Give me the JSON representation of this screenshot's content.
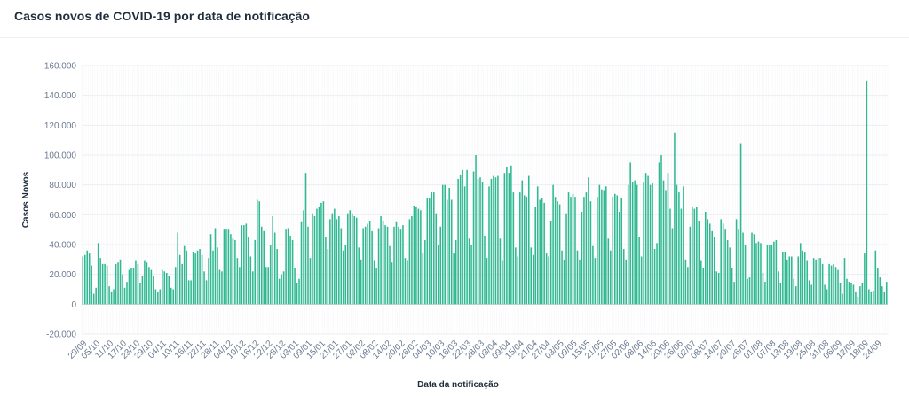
{
  "title": "Casos novos de COVID-19 por data de notificação",
  "colors": {
    "bar": "#2fb991",
    "grid": "#eceef2",
    "zero": "#cfd4dc"
  },
  "chart_data": {
    "type": "bar",
    "title": "Casos novos de COVID-19 por data de notificação",
    "xlabel": "Data da notificação",
    "ylabel": "Casos Novos",
    "ylim": [
      -20000,
      160000
    ],
    "yticks": [
      -20000,
      0,
      20000,
      40000,
      60000,
      80000,
      100000,
      120000,
      140000,
      160000
    ],
    "ytick_labels": [
      "-20.000",
      "0",
      "20.000",
      "40.000",
      "60.000",
      "80.000",
      "100.000",
      "120.000",
      "140.000",
      "160.000"
    ],
    "x_start": "29/09",
    "x_tick_labels": [
      "29/09",
      "05/10",
      "11/10",
      "17/10",
      "23/10",
      "29/10",
      "04/11",
      "10/11",
      "16/11",
      "22/11",
      "28/11",
      "04/12",
      "10/12",
      "16/12",
      "22/12",
      "28/12",
      "03/01",
      "09/01",
      "15/01",
      "21/01",
      "27/01",
      "02/02",
      "08/02",
      "14/02",
      "20/02",
      "26/02",
      "04/03",
      "10/03",
      "16/03",
      "22/03",
      "28/03",
      "03/04",
      "09/04",
      "15/04",
      "21/04",
      "27/04",
      "03/05",
      "09/05",
      "15/05",
      "21/05",
      "27/05",
      "02/06",
      "08/06",
      "14/06",
      "20/06",
      "26/06",
      "02/07",
      "08/07",
      "14/07",
      "20/07",
      "26/07",
      "01/08",
      "07/08",
      "13/08",
      "19/08",
      "25/08",
      "31/08",
      "06/09",
      "12/09",
      "18/09",
      "24/09"
    ],
    "values": [
      32000,
      33000,
      36000,
      34000,
      26000,
      7000,
      11000,
      41000,
      31000,
      27000,
      27000,
      26000,
      12000,
      8000,
      10000,
      27000,
      28000,
      30000,
      20000,
      11000,
      15000,
      23000,
      24000,
      24000,
      29000,
      27000,
      14000,
      19000,
      29000,
      28000,
      25000,
      23000,
      19000,
      10000,
      8000,
      10000,
      23000,
      22000,
      21000,
      19000,
      11000,
      10000,
      25000,
      48000,
      33000,
      27000,
      39000,
      36000,
      16000,
      16000,
      35000,
      34000,
      36000,
      37000,
      33000,
      22000,
      16000,
      31000,
      47000,
      36000,
      51000,
      38000,
      23000,
      22000,
      50000,
      50000,
      50000,
      47000,
      44000,
      43000,
      31000,
      25000,
      53000,
      53000,
      54000,
      45000,
      32000,
      22000,
      43000,
      70000,
      69000,
      52000,
      49000,
      25000,
      25000,
      40000,
      59000,
      48000,
      37000,
      17000,
      20000,
      22000,
      50000,
      51000,
      46000,
      43000,
      24000,
      14000,
      17000,
      55000,
      63000,
      88000,
      52000,
      31000,
      61000,
      59000,
      64000,
      65000,
      68000,
      69000,
      45000,
      37000,
      57000,
      61000,
      64000,
      57000,
      59000,
      51000,
      36000,
      40000,
      61000,
      63000,
      61000,
      59000,
      58000,
      38000,
      30000,
      51000,
      52000,
      54000,
      56000,
      49000,
      29000,
      24000,
      51000,
      59000,
      56000,
      53000,
      52000,
      39000,
      28000,
      52000,
      55000,
      52000,
      50000,
      53000,
      31000,
      29000,
      57000,
      59000,
      66000,
      65000,
      64000,
      63000,
      34000,
      43000,
      71000,
      71000,
      75000,
      75000,
      61000,
      40000,
      52000,
      80000,
      80000,
      70000,
      78000,
      70000,
      34000,
      43000,
      84000,
      87000,
      90000,
      79000,
      90000,
      44000,
      40000,
      89000,
      100000,
      84000,
      85000,
      82000,
      46000,
      31000,
      79000,
      84000,
      86000,
      85000,
      86000,
      44000,
      29000,
      88000,
      92000,
      88000,
      93000,
      75000,
      38000,
      32000,
      75000,
      83000,
      73000,
      72000,
      86000,
      38000,
      33000,
      65000,
      79000,
      70000,
      71000,
      68000,
      34000,
      32000,
      56000,
      80000,
      72000,
      69000,
      67000,
      36000,
      30000,
      61000,
      75000,
      72000,
      74000,
      72000,
      36000,
      30000,
      62000,
      72000,
      75000,
      85000,
      69000,
      39000,
      31000,
      72000,
      80000,
      77000,
      76000,
      79000,
      44000,
      36000,
      72000,
      74000,
      73000,
      62000,
      71000,
      37000,
      30000,
      80000,
      95000,
      82000,
      83000,
      80000,
      45000,
      32000,
      82000,
      88000,
      86000,
      80000,
      81000,
      37000,
      41000,
      95000,
      100000,
      83000,
      76000,
      88000,
      64000,
      51000,
      115000,
      80000,
      75000,
      64000,
      79000,
      30000,
      25000,
      52000,
      65000,
      64000,
      65000,
      56000,
      29000,
      24000,
      62000,
      57000,
      54000,
      49000,
      45000,
      22000,
      21000,
      57000,
      54000,
      50000,
      43000,
      38000,
      24000,
      15000,
      57000,
      50000,
      108000,
      48000,
      40000,
      17000,
      18000,
      48000,
      47000,
      41000,
      42000,
      41000,
      21000,
      15000,
      40000,
      40000,
      40000,
      42000,
      43000,
      22000,
      14000,
      35000,
      35000,
      30000,
      32000,
      32000,
      17000,
      12000,
      32000,
      41000,
      36000,
      35000,
      29000,
      16000,
      13000,
      31000,
      30000,
      31000,
      31000,
      27000,
      13000,
      10000,
      27000,
      26000,
      27000,
      25000,
      23000,
      14000,
      7000,
      31000,
      17000,
      15000,
      14000,
      13000,
      8000,
      5000,
      12000,
      14000,
      34000,
      150000,
      10000,
      8000,
      9000,
      36000,
      24000,
      18000,
      12000,
      8000,
      15000
    ]
  }
}
